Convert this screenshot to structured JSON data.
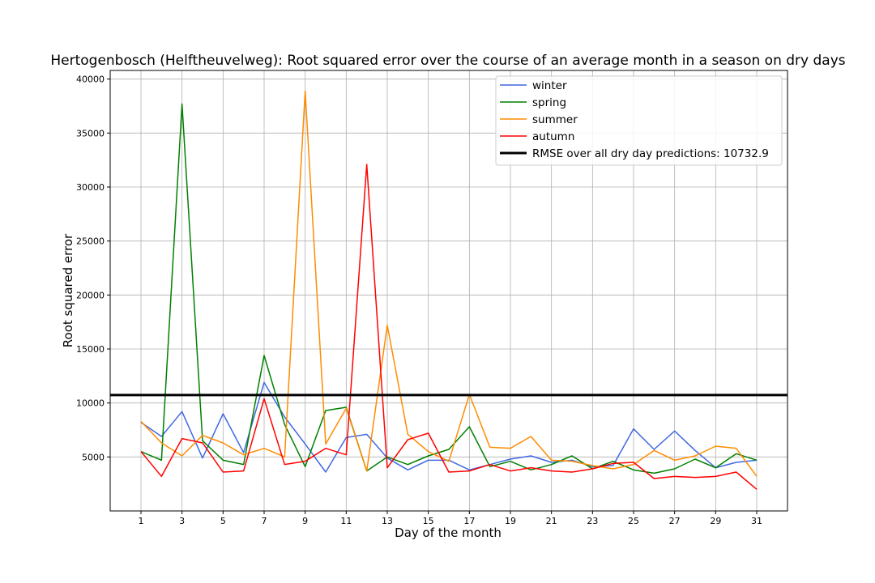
{
  "chart_data": {
    "type": "line",
    "title": "Hertogenbosch (Helftheuvelweg): Root squared error over the course of an average month in a season on dry days",
    "xlabel": "Day of the month",
    "ylabel": "Root squared error",
    "xlim": [
      -0.5,
      32.5
    ],
    "ylim": [
      0,
      40800
    ],
    "x_ticks": [
      1,
      3,
      5,
      7,
      9,
      11,
      13,
      15,
      17,
      19,
      21,
      23,
      25,
      27,
      29,
      31
    ],
    "y_ticks": [
      5000,
      10000,
      15000,
      20000,
      25000,
      30000,
      35000,
      40000
    ],
    "grid": true,
    "legend_position": "top-right",
    "x": [
      1,
      2,
      3,
      4,
      5,
      6,
      7,
      8,
      9,
      10,
      11,
      12,
      13,
      14,
      15,
      16,
      17,
      18,
      19,
      20,
      21,
      22,
      23,
      24,
      25,
      26,
      27,
      28,
      29,
      30,
      31
    ],
    "series": [
      {
        "name": "winter",
        "color": "#4169e1",
        "values": [
          8200,
          6900,
          9200,
          4900,
          9000,
          5400,
          11900,
          8700,
          6200,
          3600,
          6800,
          7100,
          4900,
          3800,
          4700,
          4700,
          3800,
          4300,
          4800,
          5100,
          4500,
          4700,
          4100,
          4200,
          7600,
          5700,
          7400,
          5600,
          4000,
          4500,
          4700
        ]
      },
      {
        "name": "spring",
        "color": "#008000",
        "values": [
          5500,
          4700,
          37700,
          6500,
          4700,
          4300,
          14400,
          8000,
          4100,
          9300,
          9600,
          3700,
          5000,
          4300,
          5100,
          5700,
          7800,
          4100,
          4600,
          3800,
          4300,
          5100,
          3900,
          4600,
          3800,
          3500,
          3900,
          4800,
          4000,
          5300,
          4700
        ]
      },
      {
        "name": "summer",
        "color": "#ff8c00",
        "values": [
          8300,
          6300,
          5100,
          7000,
          6300,
          5200,
          5800,
          5000,
          38900,
          6200,
          9500,
          3700,
          17200,
          7100,
          5500,
          4600,
          10800,
          5900,
          5800,
          6900,
          4700,
          4600,
          4200,
          3900,
          4300,
          5600,
          4700,
          5100,
          6000,
          5800,
          3200
        ]
      },
      {
        "name": "autumn",
        "color": "#ff0000",
        "values": [
          5500,
          3200,
          6700,
          6300,
          3600,
          3700,
          10400,
          4300,
          4600,
          5800,
          5200,
          32100,
          4000,
          6600,
          7200,
          3600,
          3700,
          4300,
          3700,
          4000,
          3700,
          3600,
          3900,
          4400,
          4500,
          3000,
          3200,
          3100,
          3200,
          3600,
          2000
        ]
      }
    ],
    "reference_line": {
      "label": "RMSE over all dry day predictions: 10732.9",
      "value": 10732.9,
      "color": "#000000"
    }
  }
}
